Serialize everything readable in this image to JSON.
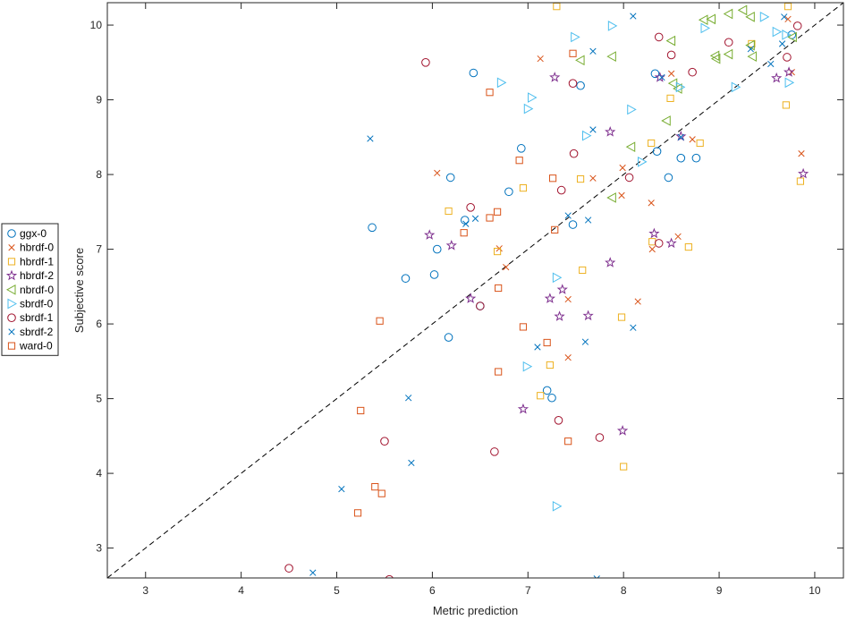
{
  "chart_data": {
    "type": "scatter",
    "xlabel": "Metric prediction",
    "ylabel": "Subjective score",
    "xlim": [
      2.6,
      10.3
    ],
    "ylim": [
      2.6,
      10.3
    ],
    "xticks": [
      3,
      4,
      5,
      6,
      7,
      8,
      9,
      10
    ],
    "yticks": [
      3,
      4,
      5,
      6,
      7,
      8,
      9,
      10
    ],
    "grid": false,
    "legend_position": "left",
    "reference_line": {
      "style": "dashed",
      "color": "#000000",
      "from": [
        2.6,
        2.6
      ],
      "to": [
        10.3,
        10.3
      ]
    },
    "series": [
      {
        "name": "ggx-0",
        "marker": "circle",
        "color": "#0072BD",
        "points": [
          [
            5.37,
            7.29
          ],
          [
            5.72,
            6.61
          ],
          [
            6.02,
            6.66
          ],
          [
            6.05,
            7.0
          ],
          [
            6.17,
            5.82
          ],
          [
            6.19,
            7.96
          ],
          [
            6.34,
            7.39
          ],
          [
            6.43,
            9.36
          ],
          [
            6.5,
            6.24
          ],
          [
            6.8,
            7.77
          ],
          [
            6.93,
            8.35
          ],
          [
            7.2,
            5.11
          ],
          [
            7.25,
            5.01
          ],
          [
            7.47,
            7.33
          ],
          [
            7.55,
            9.19
          ],
          [
            8.33,
            9.35
          ],
          [
            8.35,
            8.31
          ],
          [
            8.47,
            7.96
          ],
          [
            8.6,
            8.22
          ],
          [
            8.76,
            8.22
          ],
          [
            9.76,
            9.87
          ]
        ]
      },
      {
        "name": "hbrdf-0",
        "marker": "x",
        "color": "#D95319",
        "points": [
          [
            6.05,
            8.02
          ],
          [
            6.7,
            7.01
          ],
          [
            6.77,
            6.76
          ],
          [
            7.13,
            9.55
          ],
          [
            7.42,
            5.55
          ],
          [
            7.42,
            6.33
          ],
          [
            7.68,
            7.95
          ],
          [
            7.98,
            7.72
          ],
          [
            7.99,
            8.09
          ],
          [
            8.15,
            6.3
          ],
          [
            8.29,
            7.62
          ],
          [
            8.3,
            7.0
          ],
          [
            8.5,
            9.35
          ],
          [
            8.57,
            7.17
          ],
          [
            8.72,
            8.47
          ],
          [
            9.72,
            10.08
          ],
          [
            9.76,
            9.37
          ],
          [
            9.86,
            8.28
          ]
        ]
      },
      {
        "name": "hbrdf-1",
        "marker": "square",
        "color": "#EDB120",
        "points": [
          [
            6.17,
            7.51
          ],
          [
            6.68,
            6.97
          ],
          [
            6.95,
            7.82
          ],
          [
            7.13,
            5.04
          ],
          [
            7.23,
            5.45
          ],
          [
            7.3,
            10.25
          ],
          [
            7.55,
            7.94
          ],
          [
            7.57,
            6.72
          ],
          [
            7.98,
            6.09
          ],
          [
            8.0,
            4.09
          ],
          [
            8.29,
            8.42
          ],
          [
            8.3,
            7.1
          ],
          [
            8.49,
            9.02
          ],
          [
            8.68,
            7.03
          ],
          [
            8.8,
            8.42
          ],
          [
            9.34,
            9.75
          ],
          [
            9.7,
            8.93
          ],
          [
            9.72,
            10.25
          ],
          [
            9.85,
            7.91
          ]
        ]
      },
      {
        "name": "hbrdf-2",
        "marker": "star",
        "color": "#7E2F8E",
        "points": [
          [
            5.97,
            7.19
          ],
          [
            6.2,
            7.05
          ],
          [
            6.4,
            6.34
          ],
          [
            6.95,
            4.86
          ],
          [
            7.23,
            6.34
          ],
          [
            7.28,
            9.3
          ],
          [
            7.33,
            6.1
          ],
          [
            7.36,
            6.46
          ],
          [
            7.63,
            6.11
          ],
          [
            7.86,
            6.82
          ],
          [
            7.86,
            8.57
          ],
          [
            7.99,
            4.57
          ],
          [
            8.32,
            7.21
          ],
          [
            8.38,
            9.3
          ],
          [
            8.5,
            7.08
          ],
          [
            8.6,
            8.51
          ],
          [
            9.6,
            9.29
          ],
          [
            9.73,
            9.37
          ],
          [
            9.88,
            8.01
          ]
        ]
      },
      {
        "name": "nbrdf-0",
        "marker": "triangle-left",
        "color": "#77AC30",
        "points": [
          [
            7.55,
            9.53
          ],
          [
            7.88,
            7.69
          ],
          [
            7.88,
            9.58
          ],
          [
            8.08,
            8.37
          ],
          [
            8.45,
            8.72
          ],
          [
            8.5,
            9.79
          ],
          [
            8.57,
            9.15
          ],
          [
            8.52,
            9.22
          ],
          [
            8.84,
            10.07
          ],
          [
            8.92,
            10.08
          ],
          [
            8.96,
            9.59
          ],
          [
            8.97,
            9.55
          ],
          [
            9.1,
            9.61
          ],
          [
            9.1,
            10.15
          ],
          [
            9.25,
            10.2
          ],
          [
            9.33,
            10.11
          ],
          [
            9.33,
            9.73
          ],
          [
            9.35,
            9.58
          ],
          [
            9.77,
            9.84
          ]
        ]
      },
      {
        "name": "sbrdf-0",
        "marker": "triangle-right",
        "color": "#4DBEEE",
        "points": [
          [
            6.72,
            9.23
          ],
          [
            6.99,
            5.43
          ],
          [
            7.0,
            8.88
          ],
          [
            7.04,
            9.03
          ],
          [
            7.3,
            6.62
          ],
          [
            7.3,
            3.56
          ],
          [
            7.49,
            9.84
          ],
          [
            7.61,
            8.52
          ],
          [
            7.88,
            9.99
          ],
          [
            8.08,
            8.87
          ],
          [
            8.19,
            8.17
          ],
          [
            8.59,
            9.17
          ],
          [
            8.85,
            9.96
          ],
          [
            9.17,
            9.17
          ],
          [
            9.47,
            10.11
          ],
          [
            9.6,
            9.91
          ],
          [
            9.7,
            9.87
          ],
          [
            9.73,
            9.23
          ]
        ]
      },
      {
        "name": "sbrdf-1",
        "marker": "circle",
        "color": "#A2142F",
        "points": [
          [
            4.5,
            2.73
          ],
          [
            5.5,
            4.43
          ],
          [
            5.55,
            2.58
          ],
          [
            5.93,
            9.5
          ],
          [
            6.4,
            7.56
          ],
          [
            6.5,
            6.24
          ],
          [
            6.65,
            4.29
          ],
          [
            7.32,
            4.71
          ],
          [
            7.35,
            7.79
          ],
          [
            7.47,
            9.22
          ],
          [
            7.48,
            8.28
          ],
          [
            7.75,
            4.48
          ],
          [
            8.06,
            7.96
          ],
          [
            8.37,
            9.84
          ],
          [
            8.37,
            7.08
          ],
          [
            8.5,
            9.6
          ],
          [
            8.72,
            9.37
          ],
          [
            9.1,
            9.77
          ],
          [
            9.71,
            9.57
          ],
          [
            9.82,
            9.99
          ]
        ]
      },
      {
        "name": "sbrdf-2",
        "marker": "x",
        "color": "#0072BD",
        "points": [
          [
            4.75,
            2.67
          ],
          [
            5.05,
            3.79
          ],
          [
            5.35,
            8.48
          ],
          [
            5.75,
            5.01
          ],
          [
            5.78,
            4.14
          ],
          [
            6.35,
            7.34
          ],
          [
            6.45,
            7.41
          ],
          [
            7.1,
            5.69
          ],
          [
            7.42,
            7.45
          ],
          [
            7.6,
            5.76
          ],
          [
            7.63,
            7.39
          ],
          [
            7.68,
            9.65
          ],
          [
            7.68,
            8.6
          ],
          [
            7.72,
            2.59
          ],
          [
            8.1,
            5.95
          ],
          [
            8.1,
            10.12
          ],
          [
            8.4,
            9.3
          ],
          [
            8.6,
            8.5
          ],
          [
            9.33,
            9.68
          ],
          [
            9.54,
            9.48
          ],
          [
            9.66,
            9.75
          ],
          [
            9.68,
            10.11
          ]
        ]
      },
      {
        "name": "ward-0",
        "marker": "square",
        "color": "#D95319",
        "points": [
          [
            5.22,
            3.47
          ],
          [
            5.25,
            4.84
          ],
          [
            5.4,
            3.82
          ],
          [
            5.45,
            6.04
          ],
          [
            5.47,
            3.73
          ],
          [
            6.33,
            7.22
          ],
          [
            6.6,
            9.1
          ],
          [
            6.6,
            7.42
          ],
          [
            6.68,
            7.5
          ],
          [
            6.69,
            6.48
          ],
          [
            6.69,
            5.36
          ],
          [
            6.91,
            8.19
          ],
          [
            6.95,
            5.96
          ],
          [
            7.2,
            5.75
          ],
          [
            7.26,
            7.95
          ],
          [
            7.28,
            7.26
          ],
          [
            7.42,
            4.43
          ],
          [
            7.47,
            9.62
          ]
        ]
      }
    ]
  }
}
